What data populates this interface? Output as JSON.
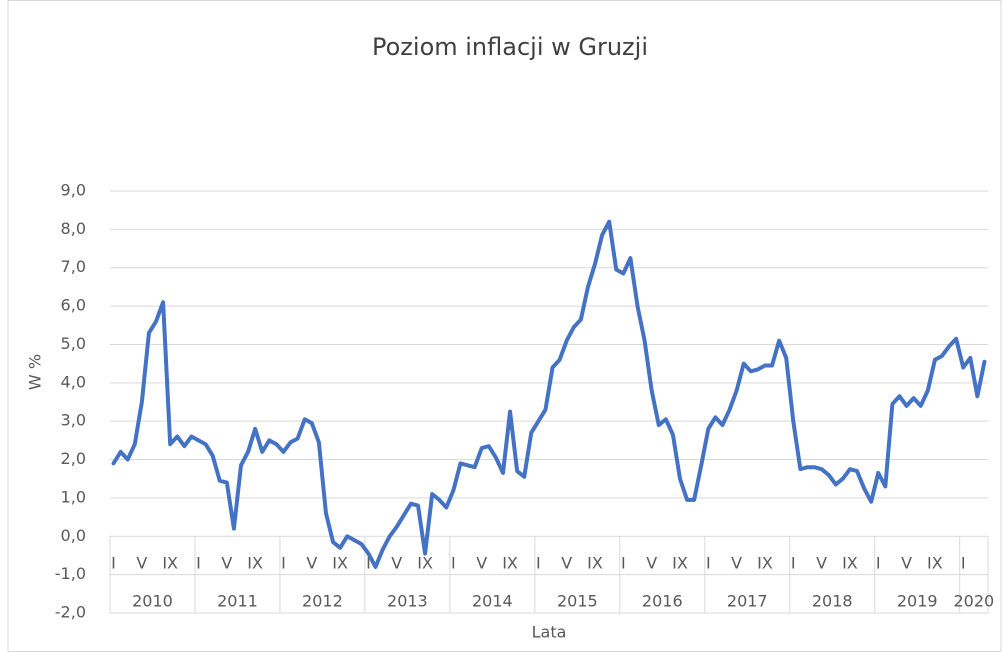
{
  "chart_data": {
    "type": "line",
    "title": "Poziom inflacji w Gruzji",
    "y_label": "W %",
    "x_label": "Lata",
    "categories": [
      "I",
      null,
      null,
      null,
      "V",
      null,
      null,
      null,
      "IX",
      null,
      null,
      null,
      "I",
      null,
      null,
      null,
      "V",
      null,
      null,
      null,
      "IX",
      null,
      null,
      null,
      "I",
      null,
      null,
      null,
      "V",
      null,
      null,
      null,
      "IX",
      null,
      null,
      null,
      "I",
      null,
      null,
      null,
      "V",
      null,
      null,
      null,
      "IX",
      null,
      null,
      null,
      "I",
      null,
      null,
      null,
      "V",
      null,
      null,
      null,
      "IX",
      null,
      null,
      null,
      "I",
      null,
      null,
      null,
      "V",
      null,
      null,
      null,
      "IX",
      null,
      null,
      null,
      "I",
      null,
      null,
      null,
      "V",
      null,
      null,
      null,
      "IX",
      null,
      null,
      null,
      "I",
      null,
      null,
      null,
      "V",
      null,
      null,
      null,
      "IX",
      null,
      null,
      null,
      "I",
      null,
      null,
      null,
      "V",
      null,
      null,
      null,
      "IX",
      null,
      null,
      null,
      "I",
      null,
      null,
      null,
      "V",
      null,
      null,
      null,
      "IX",
      null,
      null,
      null,
      "I",
      null,
      null,
      null
    ],
    "groups": [
      "2010",
      "2011",
      "2012",
      "2013",
      "2014",
      "2015",
      "2016",
      "2017",
      "2018",
      "2019",
      "2020"
    ],
    "series": [
      {
        "name": "Inflacja",
        "color": "#4472c4",
        "values": [
          1.9,
          2.2,
          2.0,
          2.4,
          3.5,
          5.3,
          5.6,
          6.1,
          2.4,
          2.6,
          2.35,
          2.6,
          2.5,
          2.4,
          2.1,
          1.45,
          1.4,
          0.2,
          1.85,
          2.2,
          2.8,
          2.2,
          2.5,
          2.4,
          2.2,
          2.45,
          2.55,
          3.05,
          2.95,
          2.45,
          0.6,
          -0.15,
          -0.3,
          0.0,
          -0.1,
          -0.2,
          -0.45,
          -0.8,
          -0.35,
          0.0,
          0.25,
          0.55,
          0.85,
          0.8,
          -0.45,
          1.1,
          0.95,
          0.75,
          1.2,
          1.9,
          1.85,
          1.8,
          2.3,
          2.35,
          2.05,
          1.65,
          3.25,
          1.7,
          1.55,
          2.7,
          3.0,
          3.3,
          4.4,
          4.6,
          5.1,
          5.45,
          5.65,
          6.5,
          7.1,
          7.85,
          8.2,
          6.95,
          6.85,
          7.25,
          6.0,
          5.1,
          3.8,
          2.9,
          3.05,
          2.65,
          1.5,
          0.95,
          0.95,
          1.85,
          2.8,
          3.1,
          2.9,
          3.3,
          3.8,
          4.5,
          4.3,
          4.35,
          4.45,
          4.45,
          5.1,
          4.65,
          3.0,
          1.75,
          1.8,
          1.8,
          1.75,
          1.6,
          1.35,
          1.5,
          1.75,
          1.7,
          1.25,
          0.9,
          1.65,
          1.3,
          3.45,
          3.65,
          3.4,
          3.6,
          3.4,
          3.8,
          4.6,
          4.7,
          4.95,
          5.15,
          4.4,
          4.65,
          3.65,
          4.55
        ]
      }
    ],
    "ylim": [
      -2,
      9
    ],
    "yticks": [
      {
        "value": -2,
        "label": "-2,0"
      },
      {
        "value": -1,
        "label": "-1,0"
      },
      {
        "value": 0,
        "label": "0,0"
      },
      {
        "value": 1,
        "label": "1,0"
      },
      {
        "value": 2,
        "label": "2,0"
      },
      {
        "value": 3,
        "label": "3,0"
      },
      {
        "value": 4,
        "label": "4,0"
      },
      {
        "value": 5,
        "label": "5,0"
      },
      {
        "value": 6,
        "label": "6,0"
      },
      {
        "value": 7,
        "label": "7,0"
      },
      {
        "value": 8,
        "label": "8,0"
      },
      {
        "value": 9,
        "label": "9,0"
      }
    ],
    "grid": true
  }
}
